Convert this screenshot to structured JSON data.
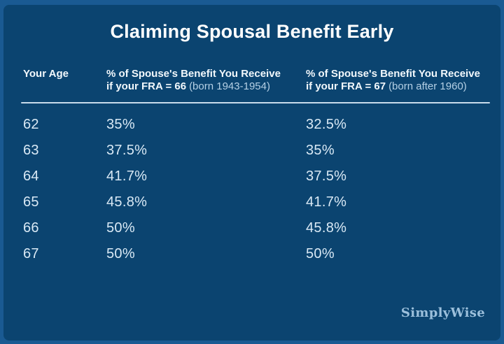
{
  "title": "Claiming Spousal Benefit Early",
  "table": {
    "header": {
      "col_age": "Your Age",
      "col_fra66_line1": "% of Spouse's Benefit You Receive",
      "col_fra66_bold": "if your FRA = 66",
      "col_fra66_note": "(born 1943-1954)",
      "col_fra67_line1": "% of Spouse's Benefit You Receive",
      "col_fra67_bold": "if your FRA = 67",
      "col_fra67_note": "(born after 1960)"
    },
    "rows": [
      {
        "age": "62",
        "fra66": "35%",
        "fra67": "32.5%"
      },
      {
        "age": "63",
        "fra66": "37.5%",
        "fra67": "35%"
      },
      {
        "age": "64",
        "fra66": "41.7%",
        "fra67": "37.5%"
      },
      {
        "age": "65",
        "fra66": "45.8%",
        "fra67": "41.7%"
      },
      {
        "age": "66",
        "fra66": "50%",
        "fra67": "45.8%"
      },
      {
        "age": "67",
        "fra66": "50%",
        "fra67": "50%"
      }
    ]
  },
  "branding": {
    "logo": "SimplyWise"
  },
  "colors": {
    "frame": "#1a5a92",
    "panel": "#0b4470",
    "title_text": "#ffffff",
    "header_text": "#f2f8fc",
    "note_text": "#b5d0e5",
    "data_text": "#d9e9f5",
    "divider": "#c9dcec",
    "logo_text": "#9cc0dc"
  },
  "chart_data": {
    "type": "table",
    "title": "Claiming Spousal Benefit Early",
    "columns": [
      "Your Age",
      "% of Spouse's Benefit You Receive if your FRA = 66 (born 1943-1954)",
      "% of Spouse's Benefit You Receive if your FRA = 67 (born after 1960)"
    ],
    "rows": [
      [
        "62",
        "35%",
        "32.5%"
      ],
      [
        "63",
        "37.5%",
        "35%"
      ],
      [
        "64",
        "41.7%",
        "37.5%"
      ],
      [
        "65",
        "45.8%",
        "41.7%"
      ],
      [
        "66",
        "50%",
        "45.8%"
      ],
      [
        "67",
        "50%",
        "50%"
      ]
    ]
  }
}
